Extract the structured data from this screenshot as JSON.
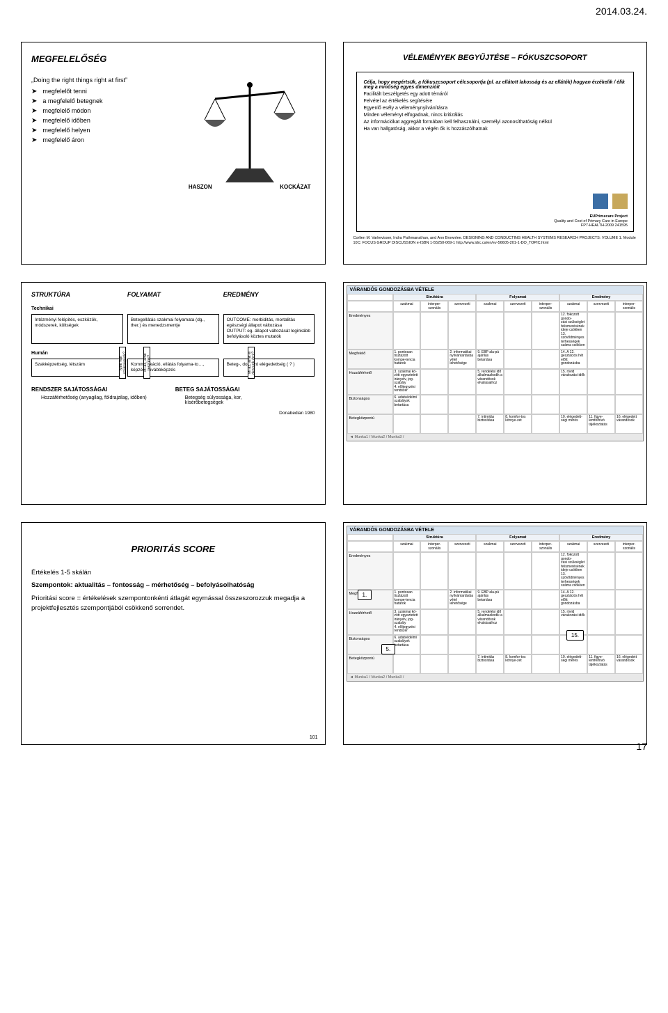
{
  "page_date": "2014.03.24.",
  "page_number": "17",
  "slide1": {
    "title": "MEGFELELŐSÉG",
    "quote": "„Doing the right things right at first”",
    "bullets": [
      "megfelelőt tenni",
      "a megfelelő betegnek",
      "megfelelő módon",
      "megfelelő időben",
      "megfelelő helyen",
      "megfelelő áron"
    ],
    "balance": {
      "left": "HASZON",
      "right": "KOCKÁZAT"
    }
  },
  "slide2": {
    "title": "VÉLEMÉNYEK BEGYŰJTÉSE – FÓKUSZCSOPORT",
    "lines": [
      "Célja, hogy megértsük, a fókuszcsoport célcsoportja (pl. az ellátott lakosság és az ellátók) hogyan érzékelik / élik meg a minőség egyes dimenzióit",
      "Facilitált beszélgetés egy adott témáról",
      "Felvétel az értékelés segítésére",
      "Egyenlő esély a véleménynyilvánításra",
      "Minden véleményt elfogadnak, nincs kritizálás",
      "Az információkat aggregált formában kell felhasználni, személyi azonosíthatóság nélkül",
      "Ha van hallgatóság, akkor a végén ők is hozzászólhatnak"
    ],
    "project_box": [
      "EUPrimecare Project",
      "Quality and Cost of Primary Care in Europe",
      "FP7-HEALTH-2009  241595"
    ],
    "citation": "Corlien M. Varkevisser, Indra Pathmanathan, and Ann Brownlee. DESIGNING AND CONDUCTING HEALTH SYSTEMS RESEARCH PROJECTS: VOLUME 1. Module 10C: FOCUS GROUP DISCUSSION e-ISBN 1-55250-069-1 http://www.idrc.ca/en/ev-56605-201-1-DO_TOPIC.html"
  },
  "slide5": {
    "headers": {
      "c1": "STRUKTÚRA",
      "c2": "FOLYAMAT",
      "c3": "EREDMÉNY"
    },
    "row1": "Technikai",
    "row2": "Humán",
    "boxes": {
      "r1c1": "Intézményi felépítés, eszközök, módszerek, költségek",
      "r1c2": "Betegellátás szakmai folyamata (dg., ther.) és menedzsmentje",
      "r1c3": "OUTCOME: morbiditás, mortalitás egészségi állapot változása\nOUTPUT: eg. állapot változását leginkább befolyásoló köztes mutatók",
      "r2c1": "Szakképzettség, létszám",
      "r2c2": "Kommunikáció, ellátás folyama-to…, képzés, továbbképzés",
      "r2c3": "Beteg-, dolgozó elégedettség ( ? )"
    },
    "vert": {
      "a": "Mire van szükségünk?",
      "b": "Mi az, amit teszünk?",
      "c": "Mi az, amit el akarunk érni?"
    },
    "sys1": "RENDSZER SAJÁTOSSÁGAI",
    "sys2": "BETEG SAJÁTOSSÁGAI",
    "foot1": "Hozzáférhetőség (anyagilag, földrajzilag, időben)",
    "foot2": "Betegség súlyossága, kor,\nkísérőbetegségek",
    "ref": "Donabedian 1980"
  },
  "matrix": {
    "title": "VÁRANDÓS GONDOZÁSBA VÉTELE",
    "topGroups": [
      "Struktúra",
      "Folyamat",
      "Eredmény"
    ],
    "subCols": [
      "szakmai",
      "interper-szonális",
      "szervezeti",
      "szakmai",
      "szervezeti",
      "interper-szonális",
      "szakmai",
      "szervezeti",
      "interper-szonális"
    ],
    "rowLabels": [
      "Eredményes",
      "Megfelelő",
      "Hozzáférhető",
      "Biztonságos",
      "Betegközpontú"
    ],
    "cells": {
      "r0": [
        "",
        "",
        "",
        "",
        "",
        "",
        "12. fokozott gondo-\nzási szükséglet\nfelismerésének\nideje csökken\n13. szövődményes\nterhességek\nszáma csökken",
        "",
        ""
      ],
      "r1": [
        "1. pontosan tisztázott kompe-tencia határok",
        "",
        "2. informatikai nyilvántartásba vétel lehetősége",
        "9. EBP ala-pú ajánlás betartása",
        "",
        "",
        "14. A 12. gesztációs hét előtt gondozásba",
        "",
        ""
      ],
      "r2": [
        "3. szakmai kö-zött egyeztetett irányelv, jog-szabály\n4. előjegyzési rendszer",
        "",
        "",
        "5. rendelési idő alkalmazkodik a várandósok elvárásaihoz",
        "",
        "",
        "15. rövid várakozási idők",
        "",
        ""
      ],
      "r3": [
        "6. adatvédelmi szabályok betartása",
        "",
        "",
        "",
        "",
        "",
        "",
        "",
        ""
      ],
      "r4": [
        "",
        "",
        "",
        "7. intimitás biztosítása",
        "8. komfor-tos környe-zet",
        "",
        "10. elégedett-ségi mérés",
        "11. figye-lemfelhívó tájékoztatás",
        "16. elégedett várandósok"
      ]
    },
    "footer": "Munka1 / Munka2 / Munka3 /"
  },
  "slide7": {
    "title": "PRIORITÁS SCORE",
    "lines": [
      "Értékelés 1-5 skálán",
      "Szempontok: aktualitás – fontosság – mérhetőség – befolyásolhatóság",
      "Prioritási score = értékelések szempontonkénti átlagát egymással összeszorozzuk megadja a projektfejlesztés szempontjából csökkenő sorrendet."
    ],
    "page_counter": "101"
  },
  "slide8": {
    "badges": [
      "1.",
      "5.",
      "15."
    ]
  }
}
